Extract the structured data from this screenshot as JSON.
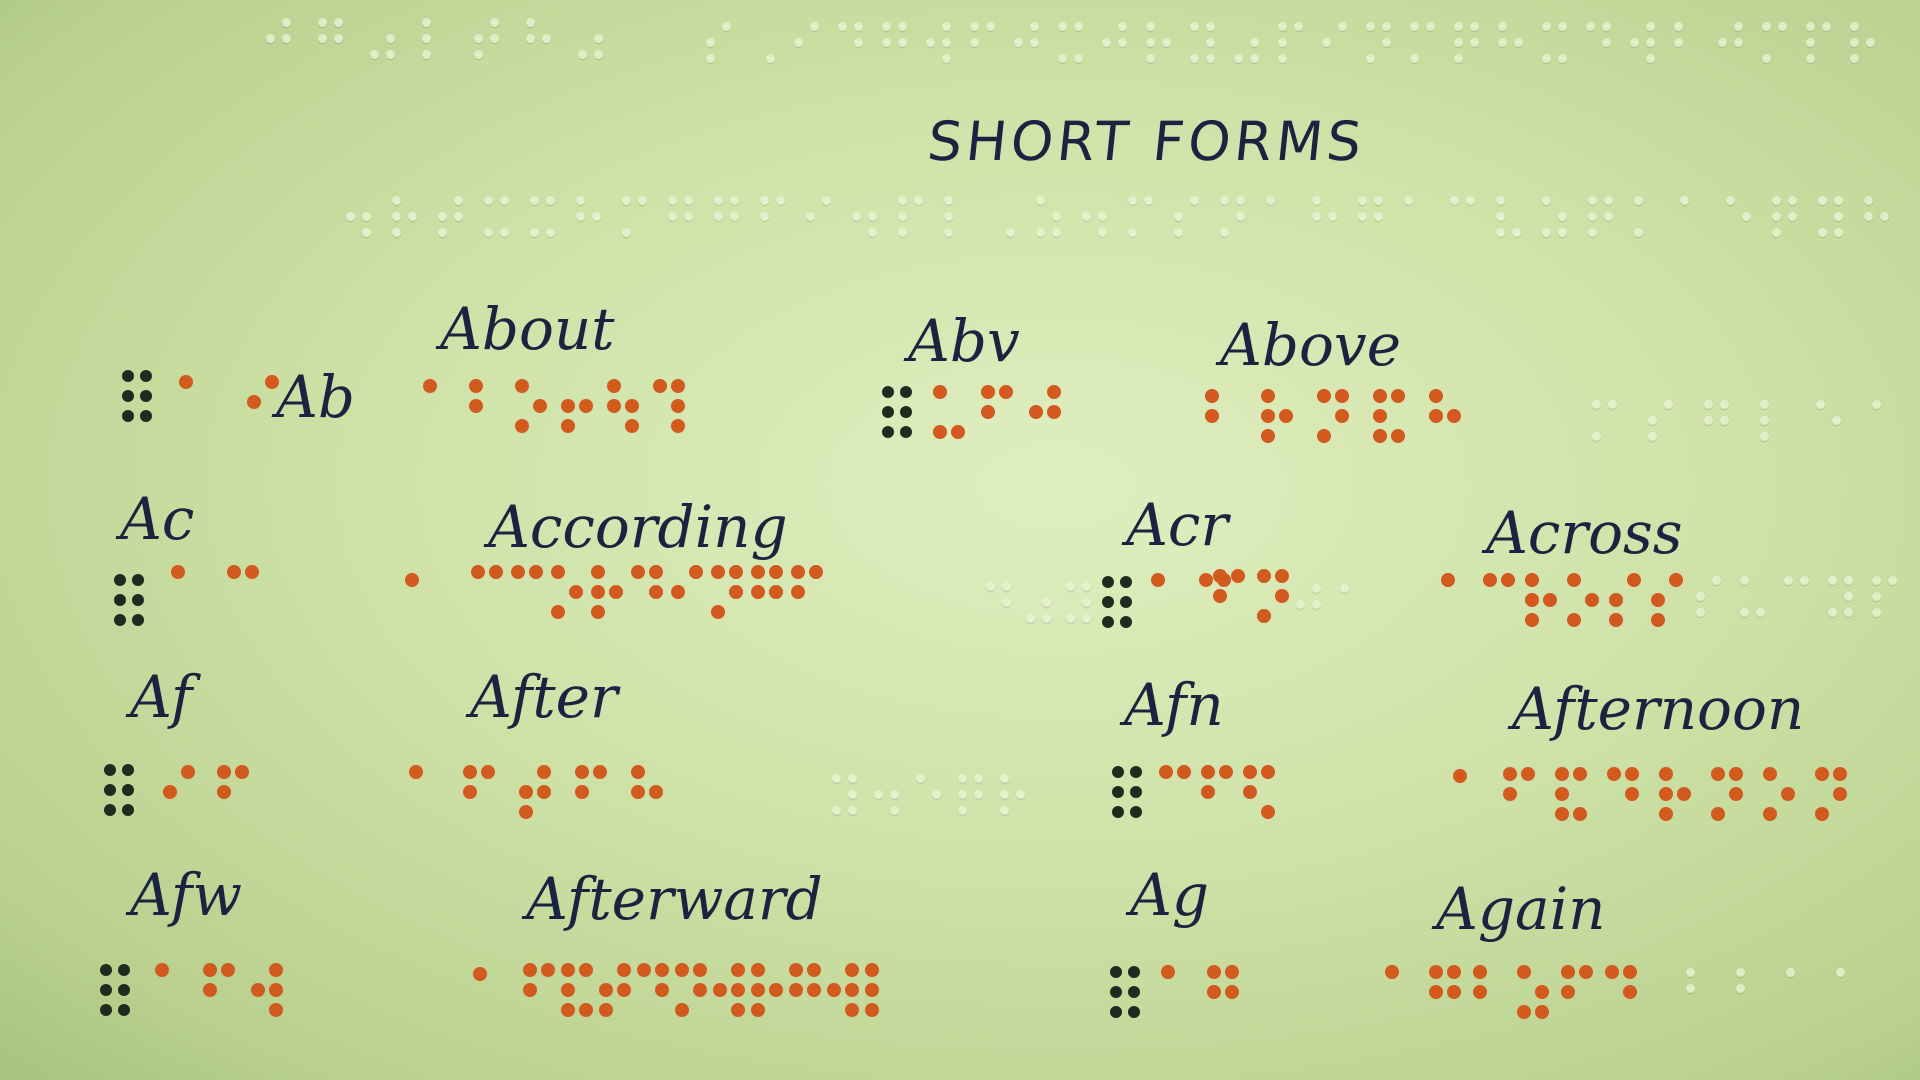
{
  "heading": "SHORT FORMS",
  "entries": [
    {
      "abbr": "Ab",
      "word": "About"
    },
    {
      "abbr": "Abv",
      "word": "Above"
    },
    {
      "abbr": "Ac",
      "word": "According"
    },
    {
      "abbr": "Acr",
      "word": "Across"
    },
    {
      "abbr": "Af",
      "word": "After"
    },
    {
      "abbr": "Afn",
      "word": "Afternoon"
    },
    {
      "abbr": "Afw",
      "word": "Afterward"
    },
    {
      "abbr": "Ag",
      "word": "Again"
    }
  ],
  "colors": {
    "paper": "#cfe2a8",
    "ink": "#1a2440",
    "prefix_dots": "#1e2c20",
    "braille_dots": "#d25a1e",
    "embossed_dots": "#e8f4d4"
  }
}
